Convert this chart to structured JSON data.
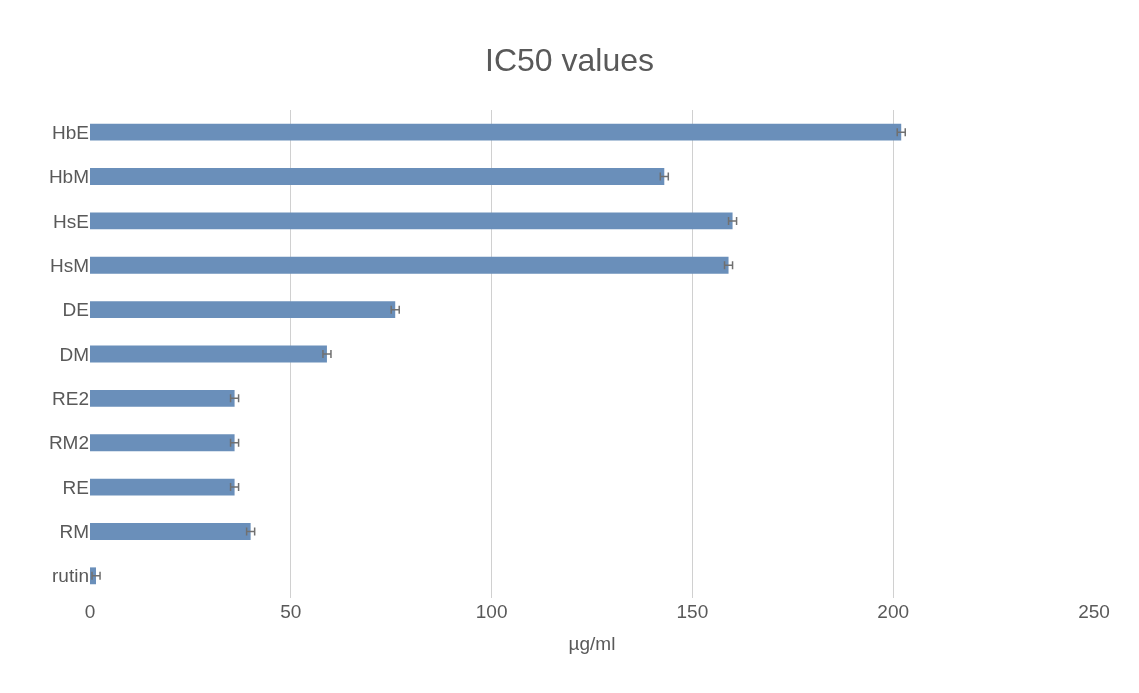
{
  "chart_data": {
    "type": "bar",
    "orientation": "horizontal",
    "title": "IC50 values",
    "xlabel": "µg/ml",
    "categories": [
      "HbE",
      "HbM",
      "HsE",
      "HsM",
      "DE",
      "DM",
      "RE2",
      "RM2",
      "RE",
      "RM",
      "rutin"
    ],
    "values": [
      202,
      143,
      160,
      159,
      76,
      59,
      36,
      36,
      36,
      40,
      1.5
    ],
    "errors": [
      1,
      1,
      1,
      1,
      1,
      1,
      1,
      1,
      1,
      1,
      1
    ],
    "color": "#6a8fba",
    "xlim": [
      0,
      250
    ],
    "xticks": [
      0,
      50,
      100,
      150,
      200,
      250
    ],
    "grid": "x"
  }
}
